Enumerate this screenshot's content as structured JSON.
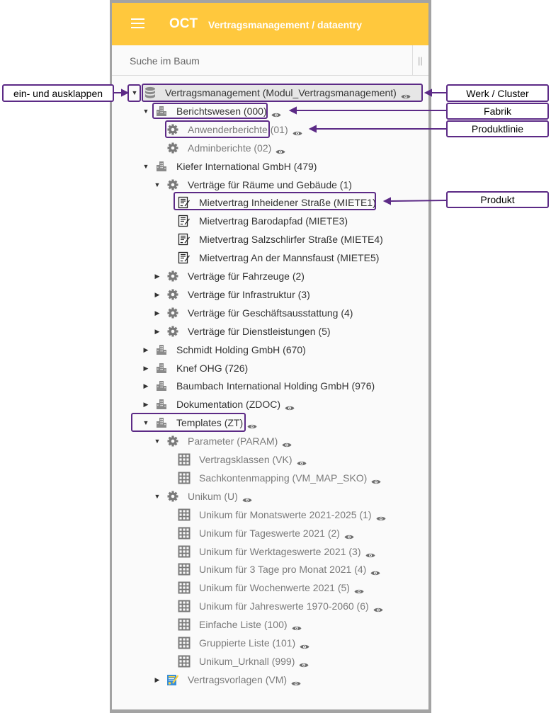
{
  "header": {
    "app_name": "OCT",
    "subtitle": "Vertragsmanagement / dataentry"
  },
  "search": {
    "placeholder": "Suche im Baum",
    "splitter": "||"
  },
  "colors": {
    "header": "#ffc83d",
    "annotation": "#5c2a86",
    "selected_row": "#e6e6e6"
  },
  "tree": [
    {
      "label": "Vertragsmanagement (Modul_Vertragsmanagement)",
      "level": 0,
      "toggle": "expanded",
      "icon": "database-icon",
      "eye": true,
      "muted": false,
      "selected": true
    },
    {
      "label": "Berichtswesen (000)",
      "level": 1,
      "toggle": "expanded",
      "icon": "building-icon",
      "eye": true,
      "muted": false
    },
    {
      "label": "Anwenderberichte (01)",
      "level": 2,
      "toggle": "none",
      "icon": "gear-icon",
      "eye": true,
      "muted": true
    },
    {
      "label": "Adminberichte (02)",
      "level": 2,
      "toggle": "none",
      "icon": "gear-icon",
      "eye": true,
      "muted": true
    },
    {
      "label": "Kiefer International GmbH (479)",
      "level": 1,
      "toggle": "expanded",
      "icon": "building-icon",
      "eye": false,
      "muted": false
    },
    {
      "label": "Verträge für Räume und Gebäude (1)",
      "level": 2,
      "toggle": "expanded",
      "icon": "gear-icon",
      "eye": false,
      "muted": false
    },
    {
      "label": "Mietvertrag Inheidener Straße (MIETE1)",
      "level": 3,
      "toggle": "none",
      "icon": "contract-icon",
      "eye": false,
      "muted": false
    },
    {
      "label": "Mietvertrag Barodapfad (MIETE3)",
      "level": 3,
      "toggle": "none",
      "icon": "contract-icon",
      "eye": false,
      "muted": false
    },
    {
      "label": "Mietvertrag Salzschlirfer Straße (MIETE4)",
      "level": 3,
      "toggle": "none",
      "icon": "contract-icon",
      "eye": false,
      "muted": false
    },
    {
      "label": "Mietvertrag An der Mannsfaust (MIETE5)",
      "level": 3,
      "toggle": "none",
      "icon": "contract-icon",
      "eye": false,
      "muted": false
    },
    {
      "label": "Verträge für Fahrzeuge (2)",
      "level": 2,
      "toggle": "collapsed",
      "icon": "gear-icon",
      "eye": false,
      "muted": false
    },
    {
      "label": "Verträge für Infrastruktur (3)",
      "level": 2,
      "toggle": "collapsed",
      "icon": "gear-icon",
      "eye": false,
      "muted": false
    },
    {
      "label": "Verträge für Geschäftsausstattung (4)",
      "level": 2,
      "toggle": "collapsed",
      "icon": "gear-icon",
      "eye": false,
      "muted": false
    },
    {
      "label": "Verträge für Dienstleistungen (5)",
      "level": 2,
      "toggle": "collapsed",
      "icon": "gear-icon",
      "eye": false,
      "muted": false
    },
    {
      "label": "Schmidt Holding GmbH (670)",
      "level": 1,
      "toggle": "collapsed",
      "icon": "building-icon",
      "eye": false,
      "muted": false
    },
    {
      "label": "Knef OHG (726)",
      "level": 1,
      "toggle": "collapsed",
      "icon": "building-icon",
      "eye": false,
      "muted": false
    },
    {
      "label": "Baumbach International Holding GmbH (976)",
      "level": 1,
      "toggle": "collapsed",
      "icon": "building-icon",
      "eye": false,
      "muted": false
    },
    {
      "label": "Dokumentation (ZDOC)",
      "level": 1,
      "toggle": "collapsed",
      "icon": "building-icon",
      "eye": true,
      "muted": false
    },
    {
      "label": "Templates (ZT)",
      "level": 1,
      "toggle": "expanded",
      "icon": "building-icon",
      "eye": true,
      "muted": false
    },
    {
      "label": "Parameter (PARAM)",
      "level": 2,
      "toggle": "expanded",
      "icon": "gear-icon",
      "eye": true,
      "muted": true
    },
    {
      "label": "Vertragsklassen (VK)",
      "level": 3,
      "toggle": "none",
      "icon": "grid-icon",
      "eye": true,
      "muted": true
    },
    {
      "label": "Sachkontenmapping (VM_MAP_SKO)",
      "level": 3,
      "toggle": "none",
      "icon": "grid-icon",
      "eye": true,
      "muted": true
    },
    {
      "label": "Unikum (U)",
      "level": 2,
      "toggle": "expanded",
      "icon": "gear-icon",
      "eye": true,
      "muted": true
    },
    {
      "label": "Unikum für Monatswerte 2021-2025 (1)",
      "level": 3,
      "toggle": "none",
      "icon": "grid-icon",
      "eye": true,
      "muted": true
    },
    {
      "label": "Unikum für Tageswerte 2021 (2)",
      "level": 3,
      "toggle": "none",
      "icon": "grid-icon",
      "eye": true,
      "muted": true
    },
    {
      "label": "Unikum für Werktageswerte 2021 (3)",
      "level": 3,
      "toggle": "none",
      "icon": "grid-icon",
      "eye": true,
      "muted": true
    },
    {
      "label": "Unikum für 3 Tage pro Monat 2021 (4)",
      "level": 3,
      "toggle": "none",
      "icon": "grid-icon",
      "eye": true,
      "muted": true
    },
    {
      "label": "Unikum für Wochenwerte 2021 (5)",
      "level": 3,
      "toggle": "none",
      "icon": "grid-icon",
      "eye": true,
      "muted": true
    },
    {
      "label": "Unikum für Jahreswerte 1970-2060 (6)",
      "level": 3,
      "toggle": "none",
      "icon": "grid-icon",
      "eye": true,
      "muted": true
    },
    {
      "label": "Einfache Liste (100)",
      "level": 3,
      "toggle": "none",
      "icon": "grid-icon",
      "eye": true,
      "muted": true
    },
    {
      "label": "Gruppierte Liste (101)",
      "level": 3,
      "toggle": "none",
      "icon": "grid-icon",
      "eye": true,
      "muted": true
    },
    {
      "label": "Unikum_Urknall (999)",
      "level": 3,
      "toggle": "none",
      "icon": "grid-icon",
      "eye": true,
      "muted": true
    },
    {
      "label": "Vertragsvorlagen (VM)",
      "level": 2,
      "toggle": "collapsed",
      "icon": "contract-color-icon",
      "eye": true,
      "muted": true
    }
  ],
  "annotations": {
    "toggle": "ein- und ausklappen",
    "werk": "Werk / Cluster",
    "fabrik": "Fabrik",
    "produktlinie": "Produktlinie",
    "produkt": "Produkt"
  }
}
